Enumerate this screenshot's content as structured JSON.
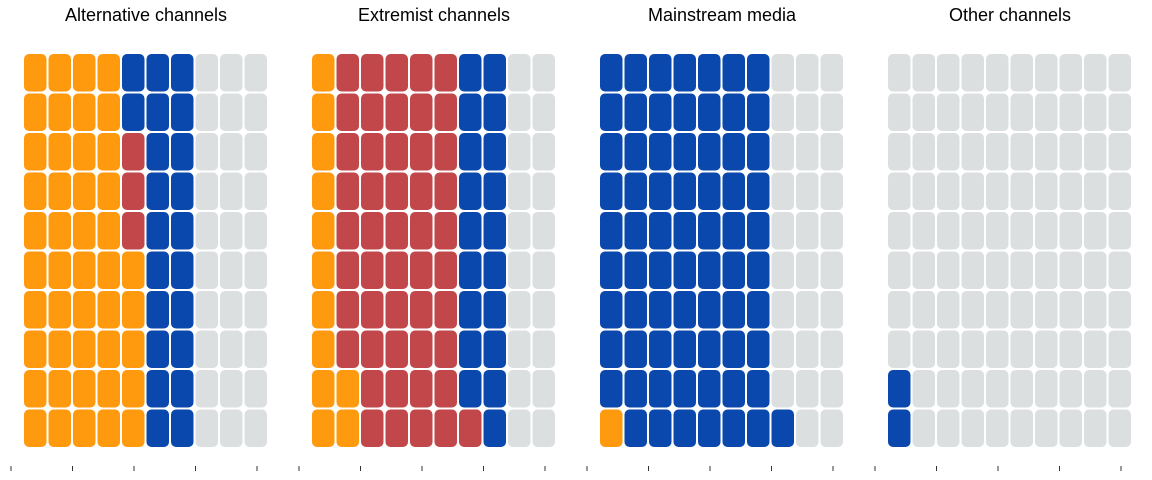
{
  "colors": {
    "orange": "#FF9A0E",
    "red": "#C1474B",
    "blue": "#0B48AE",
    "empty": "#DCDFE0",
    "tick": "#333333"
  },
  "chart_data": {
    "type": "waffle",
    "grid": {
      "columns": 10,
      "rows": 10,
      "fill_order": "column-wise, bottom-up"
    },
    "categories": [
      "orange",
      "red",
      "blue",
      "empty"
    ],
    "panels": [
      {
        "title": "Alternative channels",
        "counts": {
          "orange": 45,
          "red": 3,
          "blue": 22,
          "empty": 30
        }
      },
      {
        "title": "Extremist channels",
        "counts": {
          "orange": 12,
          "red": 49,
          "blue": 19,
          "empty": 20
        }
      },
      {
        "title": "Mainstream media",
        "counts": {
          "orange": 1,
          "red": 0,
          "blue": 70,
          "empty": 29
        }
      },
      {
        "title": "Other channels",
        "counts": {
          "orange": 0,
          "red": 0,
          "blue": 2,
          "empty": 98
        }
      }
    ]
  }
}
